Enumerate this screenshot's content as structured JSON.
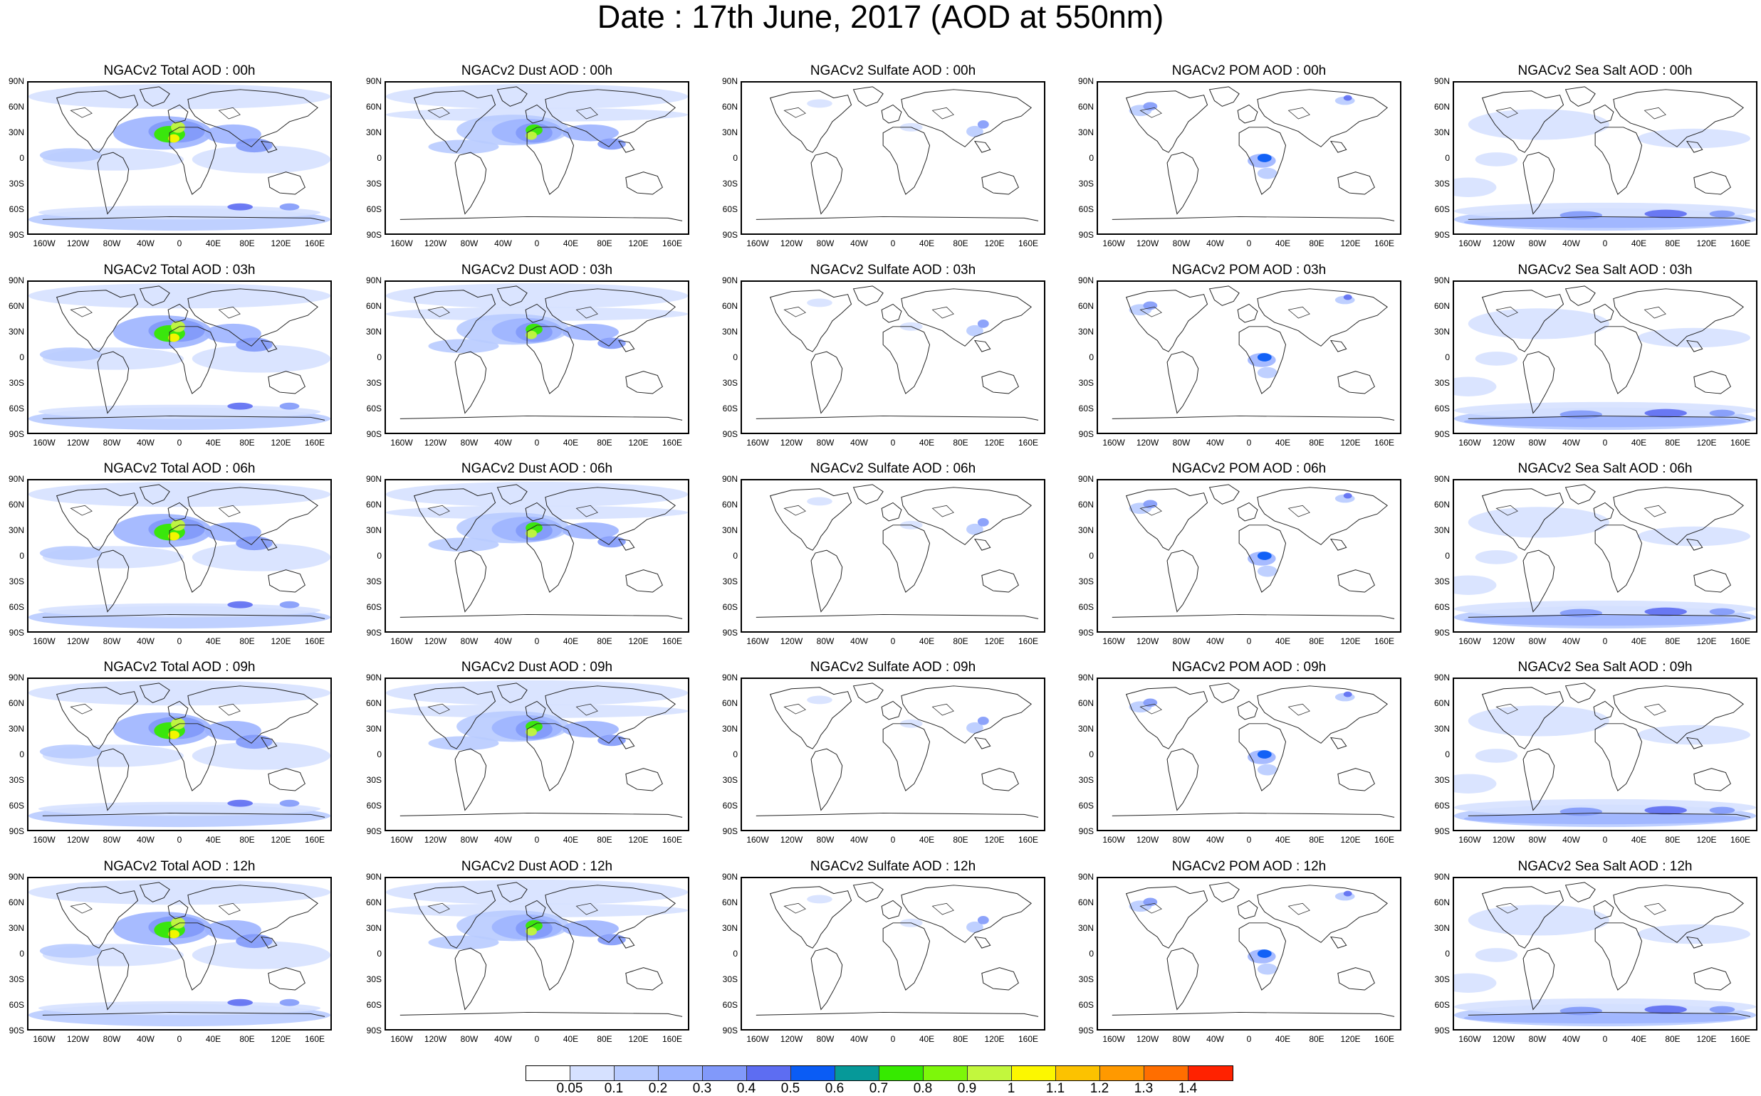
{
  "title": "Date : 17th June, 2017 (AOD at 550nm)",
  "lat_ticks": [
    "90N",
    "60N",
    "30N",
    "0",
    "30S",
    "60S",
    "90S"
  ],
  "lon_ticks": [
    "160W",
    "120W",
    "80W",
    "40W",
    "0",
    "40E",
    "80E",
    "120E",
    "160E"
  ],
  "panels": [
    [
      "NGACv2 Total AOD : 00h",
      "NGACv2 Dust AOD : 00h",
      "NGACv2 Sulfate AOD : 00h",
      "NGACv2 POM AOD : 00h",
      "NGACv2 Sea Salt AOD : 00h"
    ],
    [
      "NGACv2 Total AOD : 03h",
      "NGACv2 Dust AOD : 03h",
      "NGACv2 Sulfate AOD : 03h",
      "NGACv2 POM AOD : 03h",
      "NGACv2 Sea Salt AOD : 03h"
    ],
    [
      "NGACv2 Total AOD : 06h",
      "NGACv2 Dust AOD : 06h",
      "NGACv2 Sulfate AOD : 06h",
      "NGACv2 POM AOD : 06h",
      "NGACv2 Sea Salt AOD : 06h"
    ],
    [
      "NGACv2 Total AOD : 09h",
      "NGACv2 Dust AOD : 09h",
      "NGACv2 Sulfate AOD : 09h",
      "NGACv2 POM AOD : 09h",
      "NGACv2 Sea Salt  AOD : 09h"
    ],
    [
      "NGACv2 Total AOD :  12h",
      "NGACv2 Dust AOD : 12h",
      "NGACv2 Sulfate AOD : 12h",
      "NGACv2 POM  AOD : 12h",
      "NGACv2 Sea Salt AOD : 12h"
    ]
  ],
  "colorbar": {
    "labels": [
      "0.05",
      "0.1",
      "0.2",
      "0.3",
      "0.4",
      "0.5",
      "0.6",
      "0.7",
      "0.8",
      "0.9",
      "1",
      "1.1",
      "1.2",
      "1.3",
      "1.4"
    ],
    "colors": [
      "#ffffff",
      "#d6e1ff",
      "#b8cbff",
      "#9db4ff",
      "#8199fa",
      "#5d6df2",
      "#0a5cf5",
      "#069999",
      "#36ea00",
      "#7df70a",
      "#c2f73d",
      "#fcf700",
      "#fcc200",
      "#ff9900",
      "#ff6e00",
      "#ff2200"
    ]
  }
}
